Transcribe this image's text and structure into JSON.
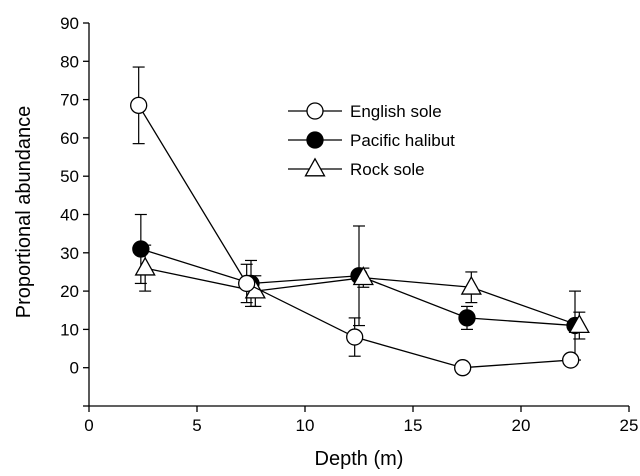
{
  "chart_data": {
    "type": "line",
    "xlabel": "Depth (m)",
    "ylabel": "Proportional abundance",
    "xlim": [
      0,
      25
    ],
    "ylim": [
      -10,
      90
    ],
    "xticks": [
      0,
      5,
      10,
      15,
      20,
      25
    ],
    "yticks": [
      0,
      10,
      20,
      30,
      40,
      50,
      60,
      70,
      80,
      90
    ],
    "legend_position": "upper-middle",
    "grid": false,
    "series": [
      {
        "name": "English sole",
        "marker": "circle-open",
        "x": [
          2.3,
          7.3,
          12.3,
          17.3,
          22.3
        ],
        "y": [
          68.5,
          22,
          8,
          0,
          2
        ],
        "err": [
          10,
          5,
          5,
          0,
          0
        ]
      },
      {
        "name": "Pacific halibut",
        "marker": "circle-filled",
        "x": [
          2.4,
          7.5,
          12.5,
          17.5,
          22.5
        ],
        "y": [
          31,
          22,
          24,
          13,
          11
        ],
        "err": [
          9,
          6,
          13,
          3,
          9
        ]
      },
      {
        "name": "Rock sole",
        "marker": "triangle-open",
        "x": [
          2.6,
          7.7,
          12.7,
          17.7,
          22.7
        ],
        "y": [
          26,
          20,
          23.5,
          21,
          11
        ],
        "err": [
          6,
          4,
          2.5,
          4,
          3.5
        ]
      }
    ]
  }
}
